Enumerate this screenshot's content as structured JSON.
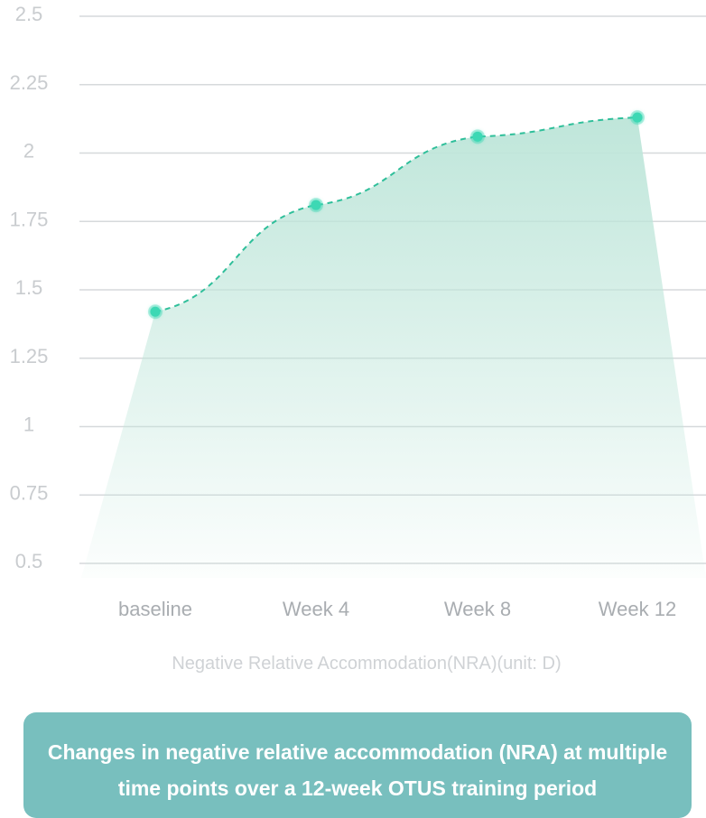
{
  "chart_data": {
    "type": "area",
    "categories": [
      "baseline",
      "Week 4",
      "Week 8",
      "Week 12"
    ],
    "series": [
      {
        "values": [
          1.42,
          1.81,
          2.06,
          2.13
        ]
      }
    ],
    "ylim": [
      0.5,
      2.5
    ],
    "yticks": [
      "2.5",
      "2.25",
      "2",
      "1.75",
      "1.5",
      "1.25",
      "1",
      "0.75",
      "0.5"
    ],
    "xlabel": "Negative Relative Accommodation(NRA)(unit: D)",
    "ylabel": "",
    "grid": true,
    "line_color": "#2fbf9a",
    "marker_color": "#3dd8b4",
    "fill_color": "#bfe6da"
  },
  "caption": "Changes in negative relative accommodation (NRA) at multiple time points over a 12-week OTUS training period"
}
